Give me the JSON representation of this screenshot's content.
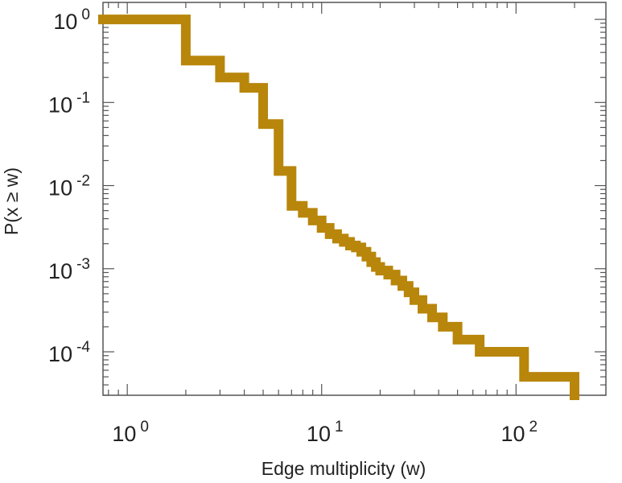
{
  "chart_data": {
    "type": "line",
    "step": true,
    "xlabel": "Edge multiplicity (w)",
    "ylabel": "P(x ≥ w)",
    "xscale": "log",
    "yscale": "log",
    "xlim": [
      0.75,
      290
    ],
    "ylim": [
      3e-05,
      1.6
    ],
    "grid": false,
    "legend": "none",
    "line_color": "#B8860B",
    "x_ticks": [
      {
        "value": 1,
        "base": "10",
        "exp": "0"
      },
      {
        "value": 10,
        "base": "10",
        "exp": "1"
      },
      {
        "value": 100,
        "base": "10",
        "exp": "2"
      }
    ],
    "y_ticks": [
      {
        "value": 1,
        "base": "10",
        "exp": "0"
      },
      {
        "value": 0.1,
        "base": "10",
        "exp": "-1"
      },
      {
        "value": 0.01,
        "base": "10",
        "exp": "-2"
      },
      {
        "value": 0.001,
        "base": "10",
        "exp": "-3"
      },
      {
        "value": 0.0001,
        "base": "10",
        "exp": "-4"
      }
    ],
    "series": [
      {
        "x": [
          1,
          2,
          3,
          4,
          5,
          6,
          7,
          8,
          9,
          10,
          11,
          12,
          13,
          14,
          15,
          16,
          17,
          18,
          19,
          20,
          22,
          24,
          26,
          28,
          30,
          33,
          37,
          42,
          50,
          65,
          110,
          200
        ],
        "y": [
          1,
          0.32,
          0.2,
          0.15,
          0.055,
          0.015,
          0.0057,
          0.0047,
          0.0038,
          0.0031,
          0.0026,
          0.0023,
          0.0021,
          0.0019,
          0.0018,
          0.0016,
          0.0014,
          0.0012,
          0.00105,
          0.00095,
          0.00085,
          0.00072,
          0.00062,
          0.00052,
          0.00042,
          0.00033,
          0.00026,
          0.0002,
          0.00014,
          0.0001,
          5e-05,
          5e-05
        ]
      }
    ]
  }
}
